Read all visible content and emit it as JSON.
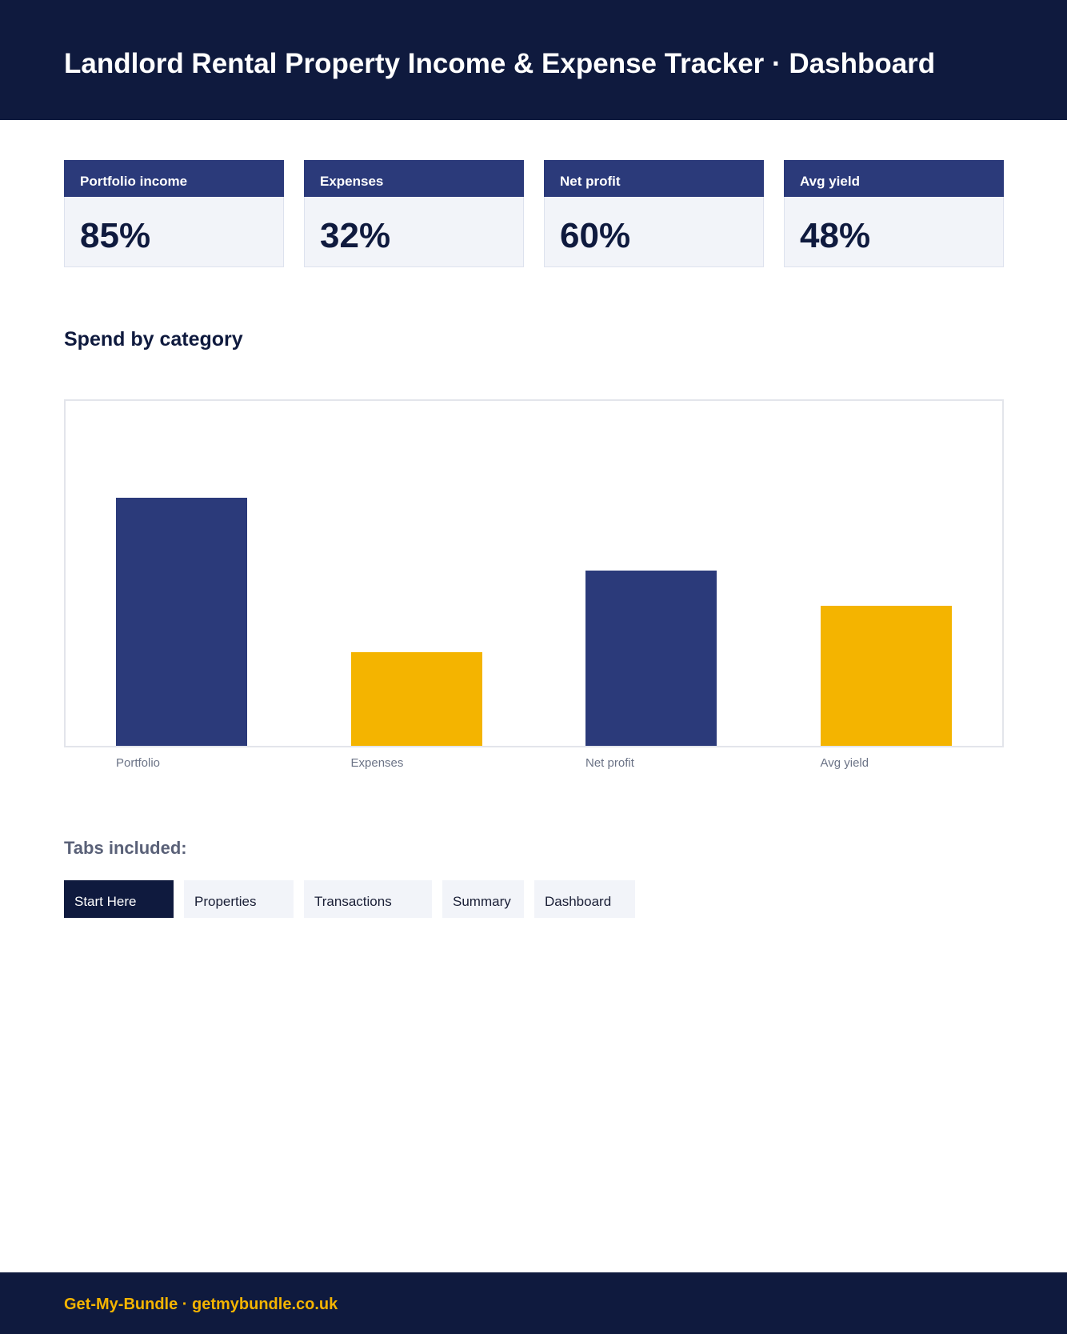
{
  "header": {
    "title": "Landlord Rental Property Income & Expense Tracker · Dashboard"
  },
  "kpis": [
    {
      "label": "Portfolio income",
      "value": "85%"
    },
    {
      "label": "Expenses",
      "value": "32%"
    },
    {
      "label": "Net profit",
      "value": "60%"
    },
    {
      "label": "Avg yield",
      "value": "48%"
    }
  ],
  "section": {
    "title": "Spend by category"
  },
  "chart_data": {
    "type": "bar",
    "title": "Spend by category",
    "categories": [
      "Portfolio",
      "Expenses",
      "Net profit",
      "Avg yield"
    ],
    "values": [
      85,
      32,
      60,
      48
    ],
    "colors": [
      "#2b3a7a",
      "#f4b400",
      "#2b3a7a",
      "#f4b400"
    ],
    "ylim": [
      0,
      118
    ],
    "grid": false
  },
  "tabs": {
    "title": "Tabs included:",
    "items": [
      "Start Here",
      "Properties",
      "Transactions",
      "Summary",
      "Dashboard"
    ],
    "active": "Start Here"
  },
  "footer": {
    "text": "Get-My-Bundle · getmybundle.co.uk"
  },
  "colors": {
    "navy": "#0f1a3e",
    "accent_navy": "#2b3a7a",
    "gold": "#f4b400",
    "panel": "#f2f4f9"
  }
}
